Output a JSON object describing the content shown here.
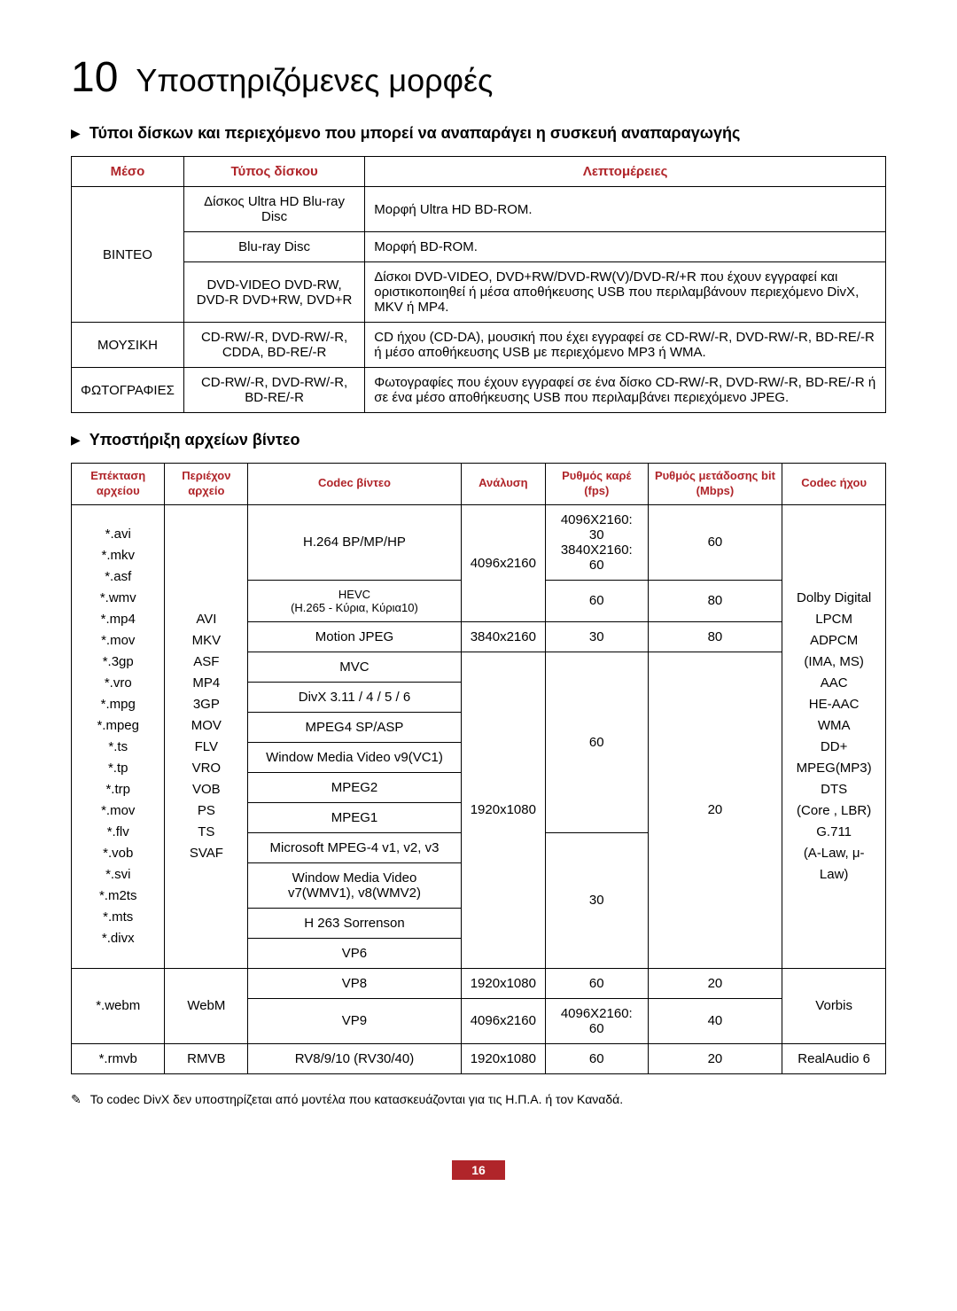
{
  "chapter": {
    "number": "10",
    "title": "Υποστηριζόμενες μορφές"
  },
  "section1": {
    "title": "Τύποι δίσκων και περιεχόμενο που μπορεί να αναπαράγει η συσκευή αναπαραγωγής",
    "headers": [
      "Μέσο",
      "Τύπος δίσκου",
      "Λεπτομέρειες"
    ],
    "rows": [
      {
        "media": "ΒΙΝΤΕΟ",
        "type": "Δίσκος Ultra HD Blu-ray Disc",
        "detail": "Μορφή Ultra HD BD-ROM."
      },
      {
        "type": "Blu-ray Disc",
        "detail": "Μορφή BD-ROM."
      },
      {
        "type": "DVD-VIDEO DVD-RW, DVD-R DVD+RW, DVD+R",
        "detail": "Δίσκοι DVD-VIDEO, DVD+RW/DVD-RW(V)/DVD-R/+R που έχουν εγγραφεί και οριστικοποιηθεί ή μέσα αποθήκευσης USB που περιλαμβάνουν περιεχόμενο DivX, MKV ή MP4."
      },
      {
        "media": "ΜΟΥΣΙΚΗ",
        "type": "CD-RW/-R, DVD-RW/-R, CDDA, BD-RE/-R",
        "detail": "CD ήχου (CD-DA), μουσική που έχει εγγραφεί σε CD-RW/-R, DVD-RW/-R, BD-RE/-R ή μέσο αποθήκευσης USB με περιεχόμενο MP3 ή WMA."
      },
      {
        "media": "ΦΩΤΟΓΡΑΦΙΕΣ",
        "type": "CD-RW/-R, DVD-RW/-R, BD-RE/-R",
        "detail": "Φωτογραφίες που έχουν εγγραφεί σε ένα δίσκο CD-RW/-R, DVD-RW/-R, BD-RE/-R ή σε ένα μέσο αποθήκευσης USB που περιλαμβάνει περιεχόμενο JPEG."
      }
    ]
  },
  "section2": {
    "title": "Υποστήριξη αρχείων βίντεο",
    "headers": [
      "Επέκταση αρχείου",
      "Περιέχον αρχείο",
      "Codec βίντεο",
      "Ανάλυση",
      "Ρυθμός καρέ (fps)",
      "Ρυθμός μετάδοσης bit (Mbps)",
      "Codec ήχου"
    ],
    "ext_list": "*.avi\n*.mkv\n*.asf\n*.wmv\n*.mp4\n*.mov\n*.3gp\n*.vro\n*.mpg\n*.mpeg\n*.ts\n*.tp\n*.trp\n*.mov\n*.flv\n*.vob\n*.svi\n*.m2ts\n*.mts\n*.divx",
    "container_list": "AVI\nMKV\nASF\nMP4\n3GP\nMOV\nFLV\nVRO\nVOB\nPS\nTS\nSVAF",
    "audio_codecs": "Dolby Digital\nLPCM\nADPCM\n(IMA, MS)\nAAC\nHE-AAC\nWMA\nDD+\nMPEG(MP3)\nDTS\n(Core , LBR)\nG.711\n(A-Law, μ-Law)",
    "rows": {
      "h264": "H.264 BP/MP/HP",
      "h264_res": "4096x2160",
      "h264_fps": "4096X2160: 30\n3840X2160: 60",
      "h264_bit": "60",
      "hevc": "HEVC\n(H.265 - Κύρια, Κύρια10)",
      "hevc_fps": "60",
      "hevc_bit": "80",
      "mjpeg": "Motion JPEG",
      "mjpeg_res": "3840x2160",
      "mjpeg_fps": "30",
      "mjpeg_bit": "80",
      "mvc": "MVC",
      "divx": "DivX 3.11 / 4 / 5 / 6",
      "mpeg4": "MPEG4 SP/ASP",
      "wmv9": "Window Media Video v9(VC1)",
      "mpeg2": "MPEG2",
      "mpeg1": "MPEG1",
      "ms": "Microsoft MPEG-4 v1, v2, v3",
      "wmv78": "Window Media Video v7(WMV1), v8(WMV2)",
      "h263": "H 263 Sorrenson",
      "vp6": "VP6",
      "res1080": "1920x1080",
      "fps60": "60",
      "fps30": "30",
      "bit20": "20",
      "webm_ext": "*.webm",
      "webm": "WebM",
      "vp8": "VP8",
      "vp8_res": "1920x1080",
      "vp8_fps": "60",
      "vp8_bit": "20",
      "vp9": "VP9",
      "vp9_res": "4096x2160",
      "vp9_fps": "4096X2160: 60",
      "vp9_bit": "40",
      "vorbis": "Vorbis",
      "rmvb_ext": "*.rmvb",
      "rmvb": "RMVB",
      "rv": "RV8/9/10 (RV30/40)",
      "rv_res": "1920x1080",
      "rv_fps": "60",
      "rv_bit": "20",
      "realaudio": "RealAudio 6"
    }
  },
  "note": "Το codec DivX δεν υποστηρίζεται από μοντέλα που κατασκευάζονται για τις Η.Π.Α. ή τον Καναδά.",
  "page": "16"
}
